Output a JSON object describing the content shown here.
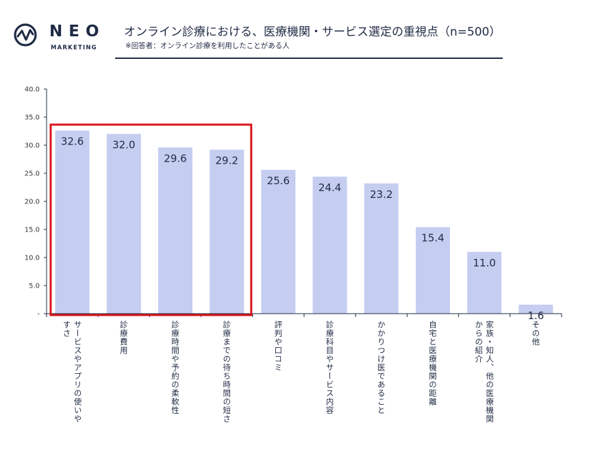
{
  "logo": {
    "name": "NEO",
    "sub": "MARKETING"
  },
  "header": {
    "title": "オンライン診療における、医療機関・サービス選定の重視点（n=500）",
    "subtitle": "※回答者：オンライン診療を利用したことがある人"
  },
  "colors": {
    "bar": "#c5cdf0",
    "highlight_box": "#d9151b",
    "axis": "#1f2a44"
  },
  "chart_data": {
    "type": "bar",
    "categories": [
      "サービスやアプリの使いやすさ",
      "診療費用",
      "診療時間や予約の柔軟性",
      "診療までの待ち時間の短さ",
      "評判や口コミ",
      "診療科目やサービス内容",
      "かかりつけ医であること",
      "自宅と医療機関の距離",
      "家族・知人、他の医療機関からの紹介",
      "その他"
    ],
    "category_display": [
      "サービスやアプリの使いや\nすさ",
      "診療費用",
      "診療時間や予約の柔軟性",
      "診療までの待ち時間の短さ",
      "評判や口コミ",
      "診療科目やサービス内容",
      "かかりつけ医であること",
      "自宅と医療機関の距離",
      "家族・知人、他の医療機関\nからの紹介",
      "その他"
    ],
    "values": [
      32.6,
      32.0,
      29.6,
      29.2,
      25.6,
      24.4,
      23.2,
      15.4,
      11.0,
      1.6
    ],
    "value_labels": [
      "32.6",
      "32.0",
      "29.6",
      "29.2",
      "25.6",
      "24.4",
      "23.2",
      "15.4",
      "11.0",
      "1.6"
    ],
    "ylim": [
      0,
      40
    ],
    "yticks": [
      0,
      5,
      10,
      15,
      20,
      25,
      30,
      35,
      40
    ],
    "ytick_labels": [
      "-",
      "5.0",
      "10.0",
      "15.0",
      "20.0",
      "25.0",
      "30.0",
      "35.0",
      "40.0"
    ],
    "grid": false,
    "highlighted_categories": [
      0,
      1,
      2,
      3
    ]
  }
}
